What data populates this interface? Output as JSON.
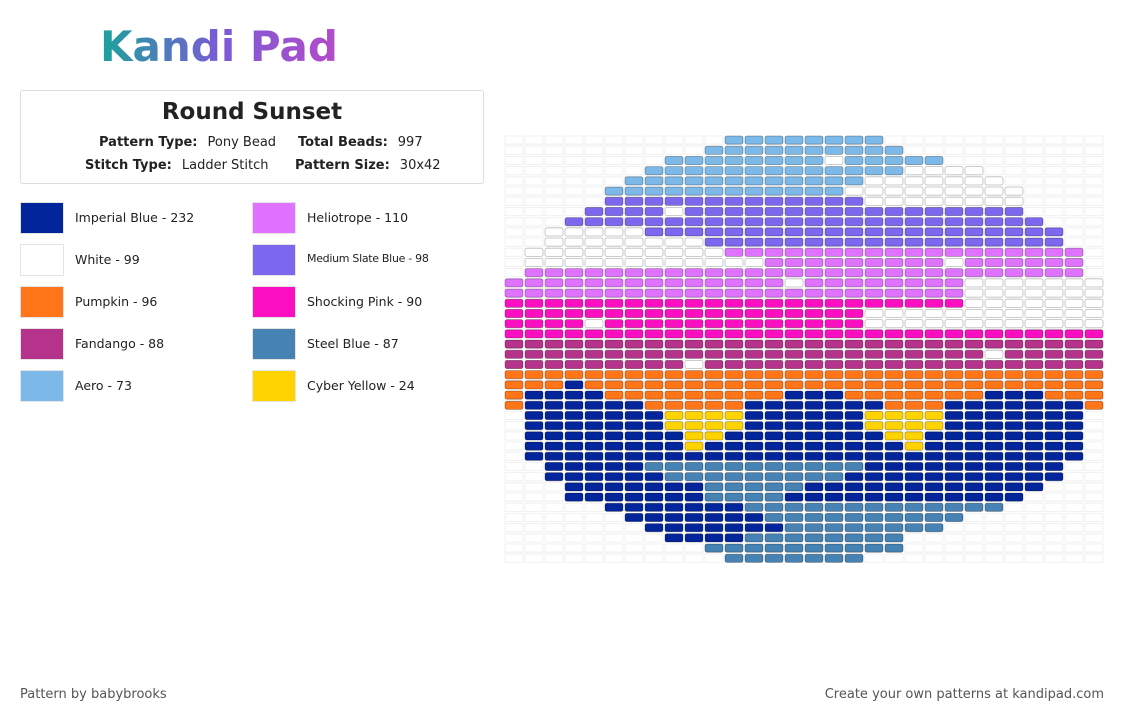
{
  "header": {
    "logo": "Kandi Pad"
  },
  "pattern": {
    "title": "Round Sunset",
    "fields": [
      {
        "label": "Pattern Type:",
        "value": "Pony Bead"
      },
      {
        "label": "Total Beads:",
        "value": "997"
      },
      {
        "label": "Stitch Type:",
        "value": "Ladder Stitch"
      },
      {
        "label": "Pattern Size:",
        "value": "30x42"
      }
    ]
  },
  "colors": [
    {
      "label": "Imperial Blue - 232",
      "color": "#03259c"
    },
    {
      "label": "White - 99",
      "color": "#ffffff"
    },
    {
      "label": "Pumpkin - 96",
      "color": "#ff7518"
    },
    {
      "label": "Fandango - 88",
      "color": "#b5338a"
    },
    {
      "label": "Aero - 73",
      "color": "#7cb9e8"
    },
    {
      "label": "Heliotrope - 110",
      "color": "#df73ff"
    },
    {
      "label": "Medium Slate Blue - 98",
      "color": "#7b68ee"
    },
    {
      "label": "Shocking Pink - 90",
      "color": "#fc0fc0"
    },
    {
      "label": "Steel Blue - 87",
      "color": "#4682b4"
    },
    {
      "label": "Cyber Yellow - 24",
      "color": "#ffd300"
    }
  ],
  "footer": {
    "left": "Pattern by babybrooks",
    "right": "Create your own patterns at kandipad.com"
  }
}
